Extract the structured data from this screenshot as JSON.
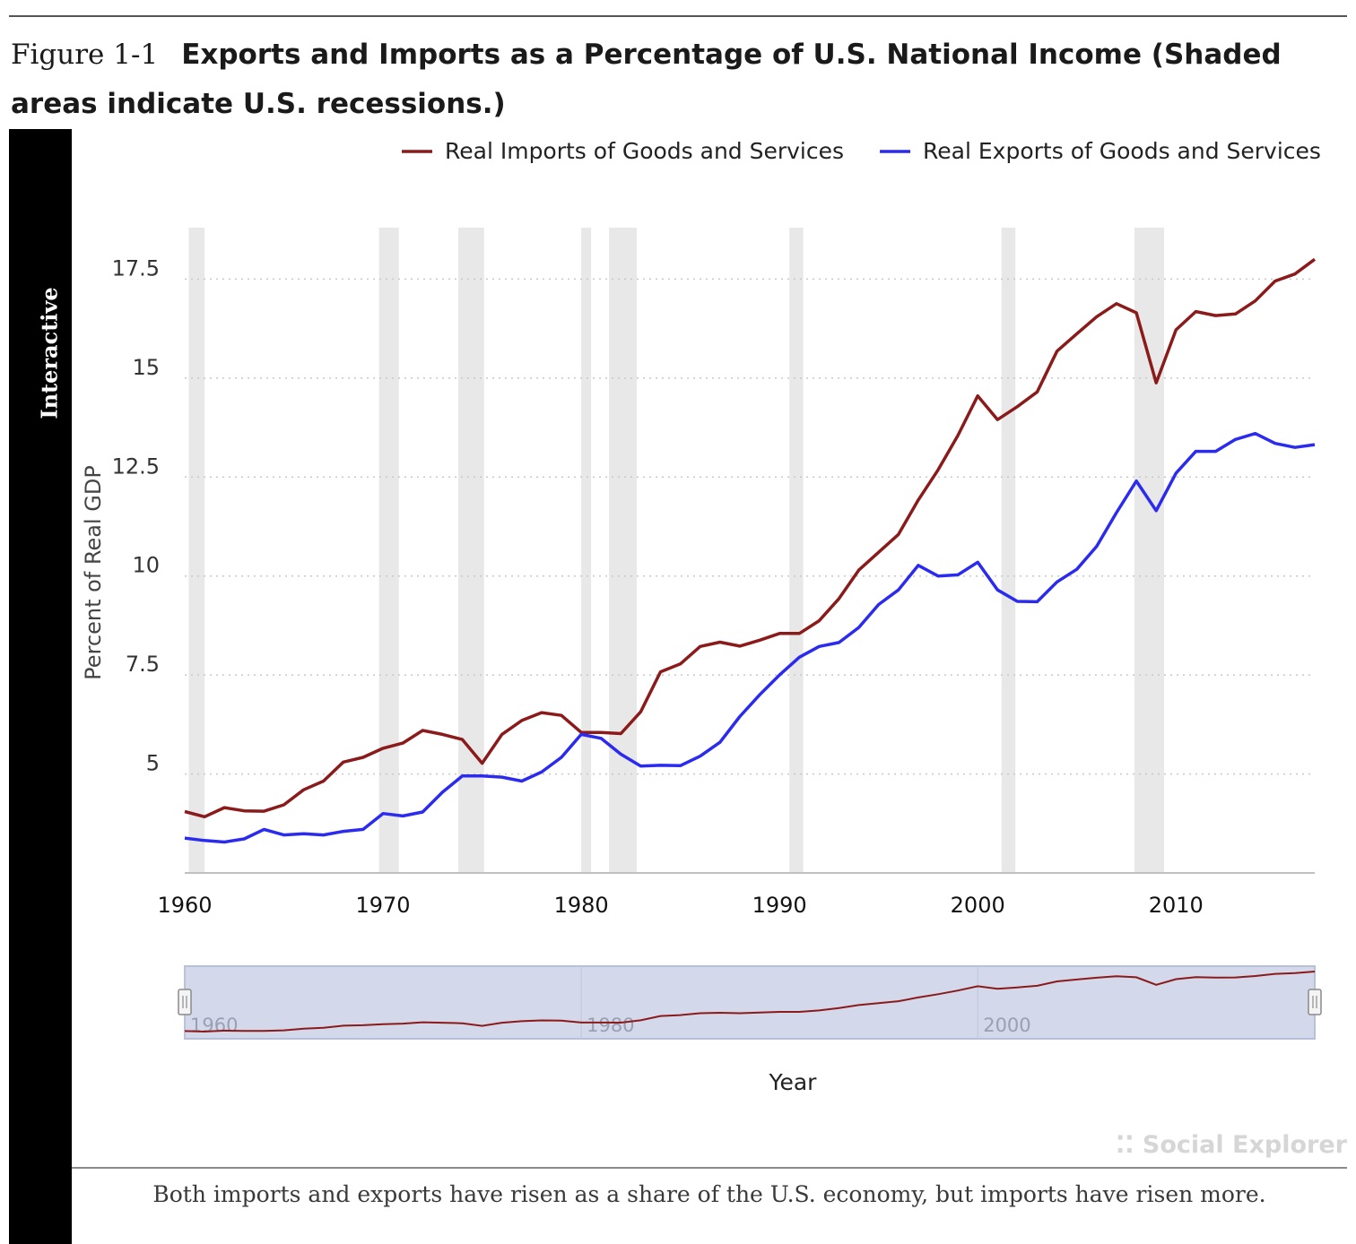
{
  "figure": {
    "label": "Figure 1-1",
    "title": "Exports and Imports as a Percentage of U.S. National Income (Shaded areas indicate U.S. recessions.)"
  },
  "side_tab": "Interactive",
  "caption": "Both imports and exports have risen as a share of the U.S. economy, but imports have risen more.",
  "watermark": "Social Explorer",
  "navigator_labels": [
    "1960",
    "1980",
    "2000"
  ],
  "colors": {
    "imports": "#8b1a1a",
    "exports": "#2b2bf0",
    "recession": "#e8e8e8",
    "navigator": "#d3d8ea"
  },
  "chart_data": {
    "type": "line",
    "title": "",
    "xlabel": "Year",
    "ylabel": "Percent of Real GDP",
    "xlim": [
      1960,
      2017
    ],
    "ylim": [
      2.5,
      18.8
    ],
    "x_ticks": [
      1960,
      1970,
      1980,
      1990,
      2000,
      2010
    ],
    "y_ticks": [
      5,
      7.5,
      10,
      12.5,
      15,
      17.5
    ],
    "y_tick_labels": [
      "5",
      "7.5",
      "10",
      "12.5",
      "15",
      "17.5"
    ],
    "grid": "horizontal dotted",
    "legend_position": "top-right",
    "recessions": [
      [
        1960.2,
        1961.0
      ],
      [
        1969.8,
        1970.8
      ],
      [
        1973.8,
        1975.1
      ],
      [
        1980.0,
        1980.5
      ],
      [
        1981.4,
        1982.8
      ],
      [
        1990.5,
        1991.2
      ],
      [
        2001.2,
        2001.9
      ],
      [
        2007.9,
        2009.4
      ]
    ],
    "x": [
      1960,
      1961,
      1962,
      1963,
      1964,
      1965,
      1966,
      1967,
      1968,
      1969,
      1970,
      1971,
      1972,
      1973,
      1974,
      1975,
      1976,
      1977,
      1978,
      1979,
      1980,
      1981,
      1982,
      1983,
      1984,
      1985,
      1986,
      1987,
      1988,
      1989,
      1990,
      1991,
      1992,
      1993,
      1994,
      1995,
      1996,
      1997,
      1998,
      1999,
      2000,
      2001,
      2002,
      2003,
      2004,
      2005,
      2006,
      2007,
      2008,
      2009,
      2010,
      2011,
      2012,
      2013,
      2014,
      2015,
      2016,
      2017
    ],
    "series": [
      {
        "name": "Real Imports of Goods and Services",
        "color": "#8b1a1a",
        "values": [
          4.05,
          3.92,
          4.15,
          4.07,
          4.06,
          4.22,
          4.6,
          4.82,
          5.3,
          5.42,
          5.65,
          5.78,
          6.1,
          6.0,
          5.87,
          5.27,
          6.0,
          6.35,
          6.55,
          6.48,
          6.05,
          6.05,
          6.02,
          6.57,
          7.58,
          7.78,
          8.22,
          8.33,
          8.23,
          8.38,
          8.55,
          8.55,
          8.87,
          9.43,
          10.15,
          10.6,
          11.05,
          11.92,
          12.68,
          13.55,
          14.55,
          13.95,
          14.28,
          14.65,
          15.68,
          16.12,
          16.55,
          16.88,
          16.65,
          14.88,
          16.22,
          16.68,
          16.58,
          16.62,
          16.95,
          17.45,
          17.63,
          18.0
        ]
      },
      {
        "name": "Real Exports of Goods and Services",
        "color": "#2b2bf0",
        "values": [
          3.38,
          3.32,
          3.28,
          3.36,
          3.6,
          3.46,
          3.49,
          3.46,
          3.55,
          3.6,
          4.0,
          3.94,
          4.04,
          4.54,
          4.95,
          4.95,
          4.92,
          4.82,
          5.05,
          5.42,
          6.0,
          5.9,
          5.5,
          5.2,
          5.22,
          5.21,
          5.45,
          5.8,
          6.45,
          7.0,
          7.5,
          7.95,
          8.22,
          8.32,
          8.7,
          9.28,
          9.65,
          10.27,
          10.0,
          10.03,
          10.35,
          9.65,
          9.36,
          9.35,
          9.85,
          10.17,
          10.75,
          11.6,
          12.4,
          11.65,
          12.6,
          13.15,
          13.15,
          13.45,
          13.6,
          13.35,
          13.25,
          13.32
        ]
      }
    ]
  }
}
